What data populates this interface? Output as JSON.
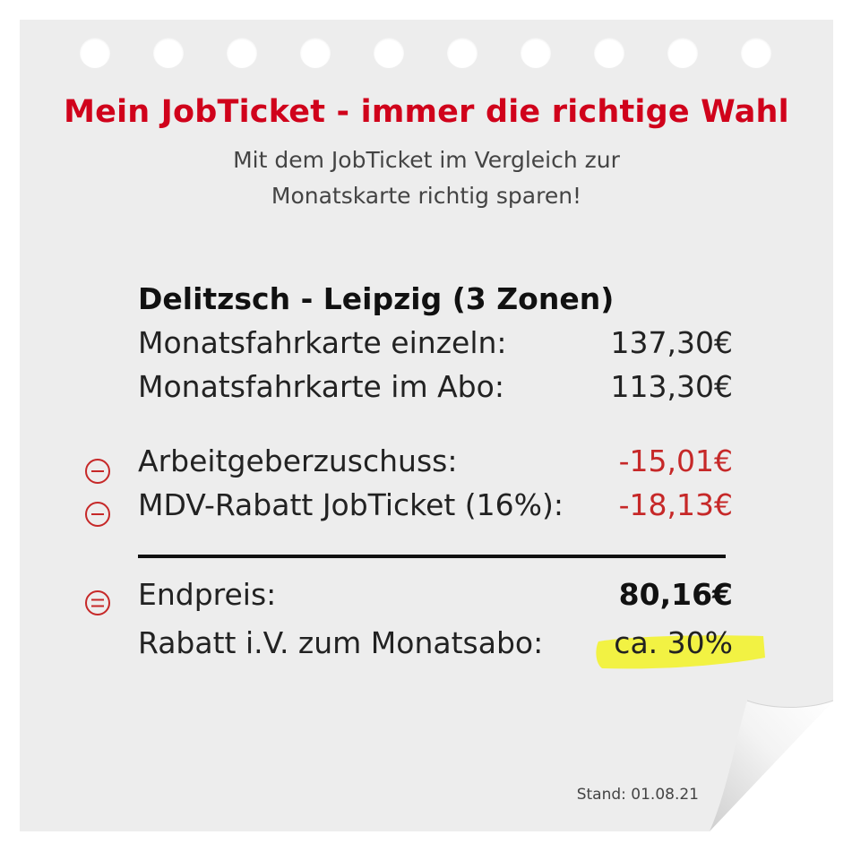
{
  "header": {
    "title": "Mein JobTicket - immer die richtige Wahl",
    "subtitle_line1": "Mit dem JobTicket im Vergleich zur",
    "subtitle_line2": "Monatskarte richtig sparen!"
  },
  "route": {
    "title": "Delitzsch - Leipzig (3 Zonen)",
    "rows": [
      {
        "label": "Monatsfahrkarte einzeln:",
        "value": "137,30€"
      },
      {
        "label": "Monatsfahrkarte im Abo:",
        "value": "113,30€"
      }
    ]
  },
  "deductions": [
    {
      "label": "Arbeitgeberzuschuss:",
      "value": "-15,01€",
      "icon": "minus-circle-icon"
    },
    {
      "label": "MDV-Rabatt JobTicket (16%):",
      "value": "-18,13€",
      "icon": "minus-circle-icon"
    }
  ],
  "result": {
    "final_label": "Endpreis:",
    "final_value": "80,16€",
    "final_icon": "equals-circle-icon",
    "discount_label": "Rabatt i.V. zum Monatsabo:",
    "discount_value": "ca. 30%"
  },
  "footer": {
    "stand": "Stand: 01.08.21"
  },
  "colors": {
    "accent_red": "#d0021b",
    "negative_red": "#c62828",
    "highlight_yellow": "#f2f23a",
    "paper": "#ededed"
  }
}
